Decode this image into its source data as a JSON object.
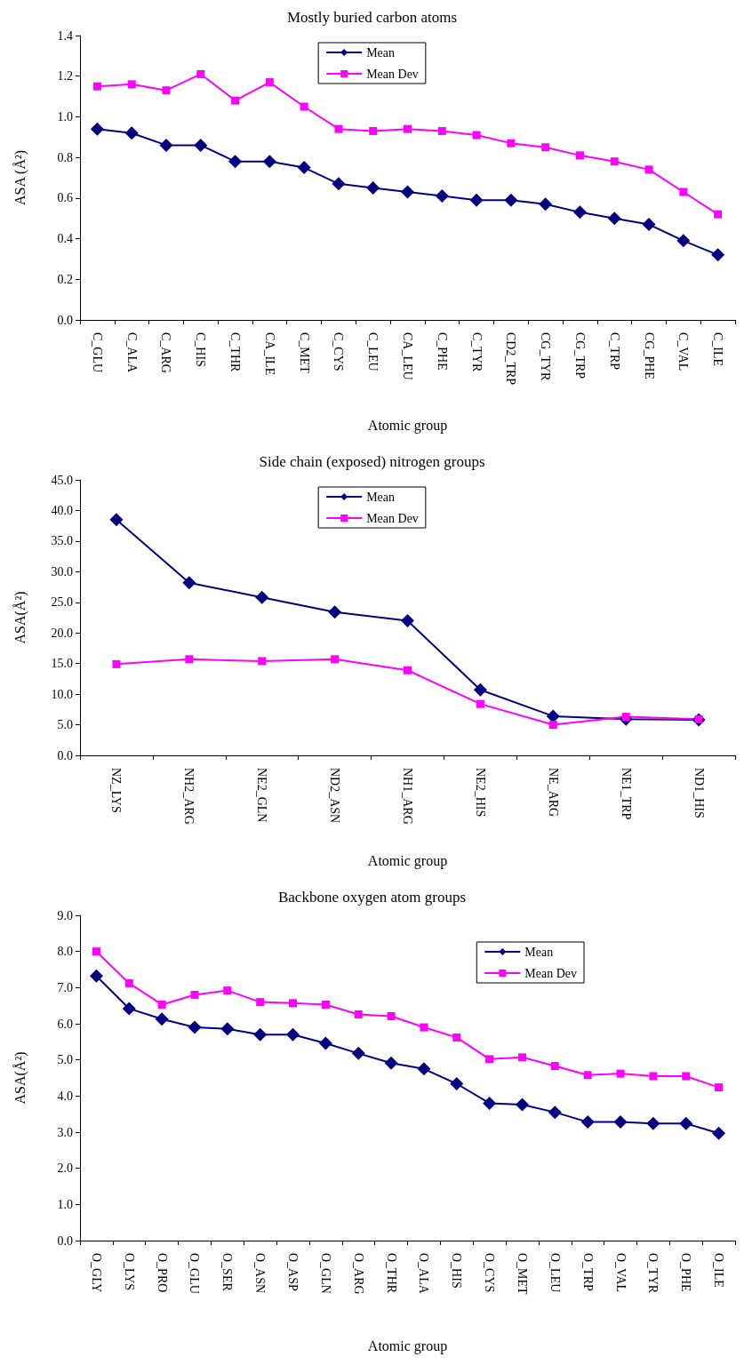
{
  "chart_data": [
    {
      "type": "line",
      "title": "Mostly buried carbon atoms",
      "xlabel": "Atomic group",
      "ylabel": "ASA (Å²)",
      "legend": "top",
      "grid": false,
      "categories": [
        "C_GLU",
        "C_ALA",
        "C_ARG",
        "C_HIS",
        "C_THR",
        "CA_ILE",
        "C_MET",
        "C_CYS",
        "C_LEU",
        "CA_LEU",
        "C_PHE",
        "C_TYR",
        "CD2_TRP",
        "CG_TYR",
        "CG_TRP",
        "C_TRP",
        "CG_PHE",
        "C_VAL",
        "C_ILE"
      ],
      "ylim": [
        0,
        1.4
      ],
      "yticks": [
        {
          "value": 0,
          "label": "0.0"
        },
        {
          "value": 0.2,
          "label": "0.2"
        },
        {
          "value": 0.4,
          "label": "0.4"
        },
        {
          "value": 0.6,
          "label": "0.6"
        },
        {
          "value": 0.8,
          "label": "0.8"
        },
        {
          "value": 1,
          "label": "1.0"
        },
        {
          "value": 1.2,
          "label": "1.2"
        },
        {
          "value": 1.4,
          "label": "1.4"
        }
      ],
      "series": [
        {
          "name": "Mean",
          "color": "#000080",
          "marker": "diamond",
          "values": [
            0.94,
            0.92,
            0.86,
            0.86,
            0.78,
            0.78,
            0.75,
            0.67,
            0.65,
            0.63,
            0.61,
            0.59,
            0.59,
            0.57,
            0.53,
            0.5,
            0.47,
            0.39,
            0.32
          ]
        },
        {
          "name": "Mean Dev",
          "color": "#ff00ff",
          "marker": "square",
          "values": [
            1.15,
            1.16,
            1.13,
            1.21,
            1.08,
            1.17,
            1.05,
            0.94,
            0.93,
            0.94,
            0.93,
            0.91,
            0.87,
            0.85,
            0.81,
            0.78,
            0.74,
            0.63,
            0.52
          ]
        }
      ]
    },
    {
      "type": "line",
      "title": "Side chain (exposed) nitrogen groups",
      "xlabel": "Atomic group",
      "ylabel": "ASA(Å²)",
      "legend": "top",
      "grid": false,
      "categories": [
        "NZ_LYS",
        "NH2_ARG",
        "NE2_GLN",
        "ND2_ASN",
        "NH1_ARG",
        "NE2_HIS",
        "NE_ARG",
        "NE1_TRP",
        "ND1_HIS"
      ],
      "ylim": [
        0,
        45
      ],
      "yticks": [
        {
          "value": 0,
          "label": "0.0"
        },
        {
          "value": 5,
          "label": "5.0"
        },
        {
          "value": 10,
          "label": "10.0"
        },
        {
          "value": 15,
          "label": "15.0"
        },
        {
          "value": 20,
          "label": "20.0"
        },
        {
          "value": 25,
          "label": "25.0"
        },
        {
          "value": 30,
          "label": "30.0"
        },
        {
          "value": 35,
          "label": "35.0"
        },
        {
          "value": 40,
          "label": "40.0"
        },
        {
          "value": 45,
          "label": "45.0"
        }
      ],
      "series": [
        {
          "name": "Mean",
          "color": "#000080",
          "marker": "diamond",
          "values": [
            38.5,
            28.2,
            25.8,
            23.4,
            22.0,
            10.7,
            6.4,
            5.9,
            5.8
          ]
        },
        {
          "name": "Mean Dev",
          "color": "#ff00ff",
          "marker": "square",
          "values": [
            14.9,
            15.7,
            15.4,
            15.7,
            13.9,
            8.4,
            5.0,
            6.3,
            5.9
          ]
        }
      ]
    },
    {
      "type": "line",
      "title": "Backbone oxygen atom groups",
      "xlabel": "Atomic group",
      "ylabel": "ASA(Å²)",
      "legend": "top right",
      "grid": false,
      "categories": [
        "O_GLY",
        "O_LYS",
        "O_PRO",
        "O_GLU",
        "O_SER",
        "O_ASN",
        "O_ASP",
        "O_GLN",
        "O_ARG",
        "O_THR",
        "O_ALA",
        "O_HIS",
        "O_CYS",
        "O_MET",
        "O_LEU",
        "O_TRP",
        "O_VAL",
        "O_TYR",
        "O_PHE",
        "O_ILE"
      ],
      "ylim": [
        0,
        9
      ],
      "yticks": [
        {
          "value": 0,
          "label": "0.0"
        },
        {
          "value": 1,
          "label": "1.0"
        },
        {
          "value": 2,
          "label": "2.0"
        },
        {
          "value": 3,
          "label": "3.0"
        },
        {
          "value": 4,
          "label": "4.0"
        },
        {
          "value": 5,
          "label": "5.0"
        },
        {
          "value": 6,
          "label": "6.0"
        },
        {
          "value": 7,
          "label": "7.0"
        },
        {
          "value": 8,
          "label": "8.0"
        },
        {
          "value": 9,
          "label": "9.0"
        }
      ],
      "series": [
        {
          "name": "Mean",
          "color": "#000080",
          "marker": "diamond",
          "values": [
            7.32,
            6.42,
            6.13,
            5.9,
            5.86,
            5.7,
            5.7,
            5.46,
            5.18,
            4.91,
            4.75,
            4.34,
            3.8,
            3.76,
            3.55,
            3.28,
            3.28,
            3.24,
            3.24,
            2.97
          ]
        },
        {
          "name": "Mean Dev",
          "color": "#ff00ff",
          "marker": "square",
          "values": [
            8.0,
            7.12,
            6.53,
            6.8,
            6.92,
            6.6,
            6.57,
            6.53,
            6.26,
            6.21,
            5.9,
            5.62,
            5.02,
            5.07,
            4.83,
            4.58,
            4.62,
            4.55,
            4.55,
            4.24
          ]
        }
      ]
    }
  ]
}
